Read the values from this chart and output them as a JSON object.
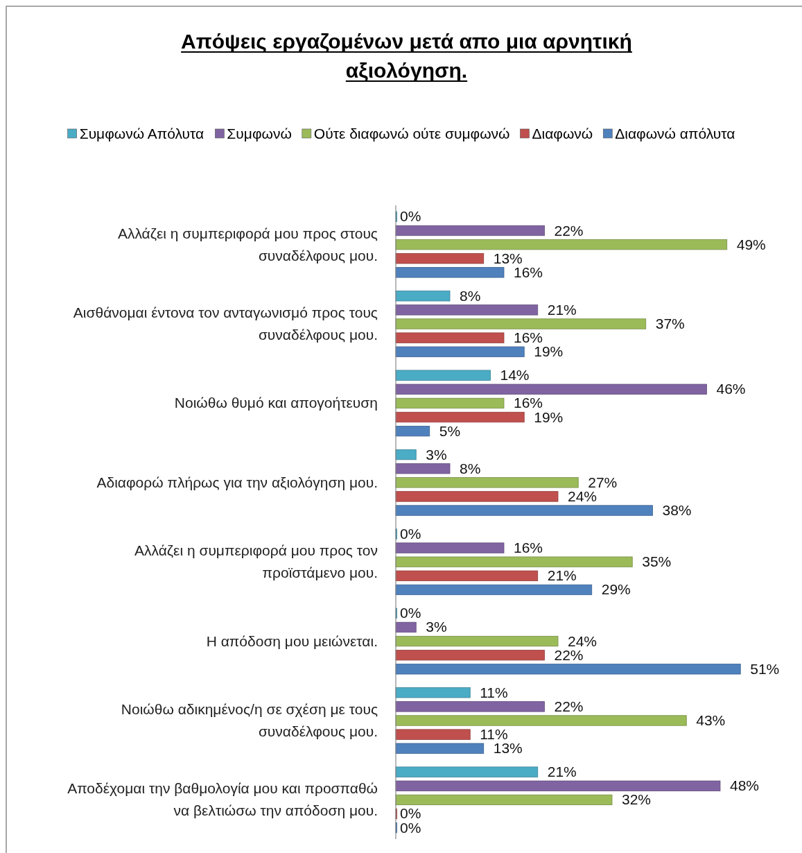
{
  "chart_data": {
    "type": "bar",
    "orientation": "horizontal",
    "title": "Απόψεις εργαζομένων μετά απο μια αρνητική αξιολόγηση.",
    "legend": "top",
    "categories": [
      "Αλλάζει η συμπεριφορά μου προς στους συναδέλφους μου.",
      "Αισθάνομαι έντονα τον ανταγωνισμό προς τους συναδέλφους μου.",
      "Νοιώθω θυμό και απογοήτευση",
      "Αδιαφορώ πλήρως για την αξιολόγηση μου.",
      "Αλλάζει η συμπεριφορά μου προς τον προϊστάμενο μου.",
      "Η απόδοση μου μειώνεται.",
      "Νοιώθω αδικημένος/η σε σχέση με τους συναδέλφους μου.",
      "Αποδέχομαι την βαθμολογία μου και προσπαθώ να βελτιώσω την απόδοση μου."
    ],
    "series": [
      {
        "name": "Συμφωνώ Απόλυτα",
        "color": "#4bacc6",
        "values": [
          0,
          8,
          14,
          3,
          0,
          0,
          11,
          21
        ],
        "value_labels": [
          "0%",
          "8%",
          "14%",
          "3%",
          "0%",
          "0%",
          "11%",
          "21%"
        ]
      },
      {
        "name": "Συμφωνώ",
        "color": "#8064a2",
        "values": [
          22,
          21,
          46,
          8,
          16,
          3,
          22,
          48
        ],
        "value_labels": [
          "22%",
          "21%",
          "46%",
          "8%",
          "16%",
          "3%",
          "22%",
          "48%"
        ]
      },
      {
        "name": "Ούτε διαφωνώ ούτε συμφωνώ",
        "color": "#9bbb59",
        "values": [
          49,
          37,
          16,
          27,
          35,
          24,
          43,
          32
        ],
        "value_labels": [
          "49%",
          "37%",
          "16%",
          "27%",
          "35%",
          "24%",
          "43%",
          "32%"
        ]
      },
      {
        "name": "Διαφωνώ",
        "color": "#c0504d",
        "values": [
          13,
          16,
          19,
          24,
          21,
          22,
          11,
          0
        ],
        "value_labels": [
          "13%",
          "16%",
          "19%",
          "24%",
          "21%",
          "22%",
          "11%",
          "0%"
        ]
      },
      {
        "name": "Διαφωνώ απόλυτα",
        "color": "#4f81bd",
        "values": [
          16,
          19,
          5,
          38,
          29,
          51,
          13,
          0
        ],
        "value_labels": [
          "16%",
          "19%",
          "5%",
          "38%",
          "29%",
          "51%",
          "13%",
          "0%"
        ]
      }
    ]
  }
}
